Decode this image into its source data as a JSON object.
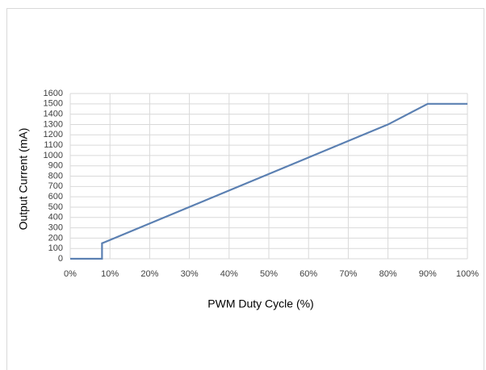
{
  "chart_data": {
    "type": "line",
    "x_label": "PWM Duty Cycle (%)",
    "y_label": "Output Current (mA)",
    "x": [
      0,
      8,
      8,
      80,
      90,
      100
    ],
    "series": [
      {
        "name": "Output Current",
        "color": "#5b80b2",
        "values": [
          0,
          0,
          150,
          1300,
          1500,
          1500
        ]
      }
    ],
    "xlim": [
      0,
      100
    ],
    "xticks": [
      {
        "value": 0,
        "label": "0%"
      },
      {
        "value": 10,
        "label": "10%"
      },
      {
        "value": 20,
        "label": "20%"
      },
      {
        "value": 30,
        "label": "30%"
      },
      {
        "value": 40,
        "label": "40%"
      },
      {
        "value": 50,
        "label": "50%"
      },
      {
        "value": 60,
        "label": "60%"
      },
      {
        "value": 70,
        "label": "70%"
      },
      {
        "value": 80,
        "label": "80%"
      },
      {
        "value": 90,
        "label": "90%"
      },
      {
        "value": 100,
        "label": "100%"
      }
    ],
    "ylim": [
      0,
      1600
    ],
    "yticks": [
      0,
      100,
      200,
      300,
      400,
      500,
      600,
      700,
      800,
      900,
      1000,
      1100,
      1200,
      1300,
      1400,
      1500,
      1600
    ],
    "grid": true
  }
}
